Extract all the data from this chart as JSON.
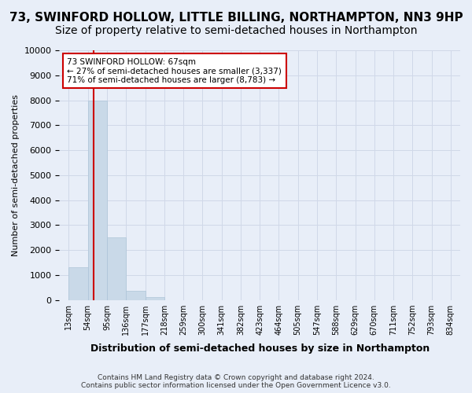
{
  "title": "73, SWINFORD HOLLOW, LITTLE BILLING, NORTHAMPTON, NN3 9HP",
  "subtitle": "Size of property relative to semi-detached houses in Northampton",
  "xlabel": "Distribution of semi-detached houses by size in Northampton",
  "ylabel": "Number of semi-detached properties",
  "footer": "Contains HM Land Registry data © Crown copyright and database right 2024.\nContains public sector information licensed under the Open Government Licence v3.0.",
  "bin_labels": [
    "13sqm",
    "54sqm",
    "95sqm",
    "136sqm",
    "177sqm",
    "218sqm",
    "259sqm",
    "300sqm",
    "341sqm",
    "382sqm",
    "423sqm",
    "464sqm",
    "505sqm",
    "547sqm",
    "588sqm",
    "629sqm",
    "670sqm",
    "711sqm",
    "752sqm",
    "793sqm",
    "834sqm"
  ],
  "bar_heights": [
    1300,
    8000,
    2500,
    350,
    100,
    0,
    0,
    0,
    0,
    0,
    0,
    0,
    0,
    0,
    0,
    0,
    0,
    0,
    0,
    0
  ],
  "bar_color": "#c9d9e8",
  "bar_edge_color": "#adc4d8",
  "property_line_x": 1.32,
  "property_value": 67,
  "annotation_title": "73 SWINFORD HOLLOW: 67sqm",
  "annotation_line1": "← 27% of semi-detached houses are smaller (3,337)",
  "annotation_line2": "71% of semi-detached houses are larger (8,783) →",
  "annotation_box_color": "#ffffff",
  "annotation_box_edge": "#cc0000",
  "ylim": [
    0,
    10000
  ],
  "yticks": [
    0,
    1000,
    2000,
    3000,
    4000,
    5000,
    6000,
    7000,
    8000,
    9000,
    10000
  ],
  "grid_color": "#d0d8e8",
  "background_color": "#e8eef8",
  "title_fontsize": 11,
  "subtitle_fontsize": 10
}
